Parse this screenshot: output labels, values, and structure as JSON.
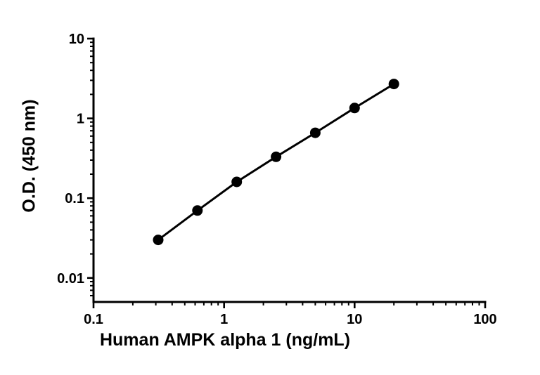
{
  "figure": {
    "background": "#ffffff"
  },
  "chart_data": {
    "type": "line",
    "title": "",
    "xlabel": "Human AMPK alpha 1 (ng/mL)",
    "ylabel": "O.D. (450 nm)",
    "x_scale": "log",
    "y_scale": "log",
    "xlim": [
      0.1,
      100
    ],
    "ylim": [
      0.005,
      10
    ],
    "grid": false,
    "legend": "none",
    "axis_color": "#000000",
    "x_ticks": [
      {
        "value": 0.1,
        "label": "0.1"
      },
      {
        "value": 1,
        "label": "1"
      },
      {
        "value": 10,
        "label": "10"
      },
      {
        "value": 100,
        "label": "100"
      }
    ],
    "y_ticks": [
      {
        "value": 0.01,
        "label": "0.01"
      },
      {
        "value": 0.1,
        "label": "0.1"
      },
      {
        "value": 1,
        "label": "1"
      },
      {
        "value": 10,
        "label": "10"
      }
    ],
    "series": [
      {
        "name": "standard-curve",
        "marker": "filled-circle",
        "marker_color": "#000000",
        "line_color": "#000000",
        "points": [
          {
            "x": 0.313,
            "y": 0.03
          },
          {
            "x": 0.625,
            "y": 0.07
          },
          {
            "x": 1.25,
            "y": 0.16
          },
          {
            "x": 2.5,
            "y": 0.33
          },
          {
            "x": 5,
            "y": 0.66
          },
          {
            "x": 10,
            "y": 1.35
          },
          {
            "x": 20,
            "y": 2.7
          }
        ]
      }
    ]
  }
}
